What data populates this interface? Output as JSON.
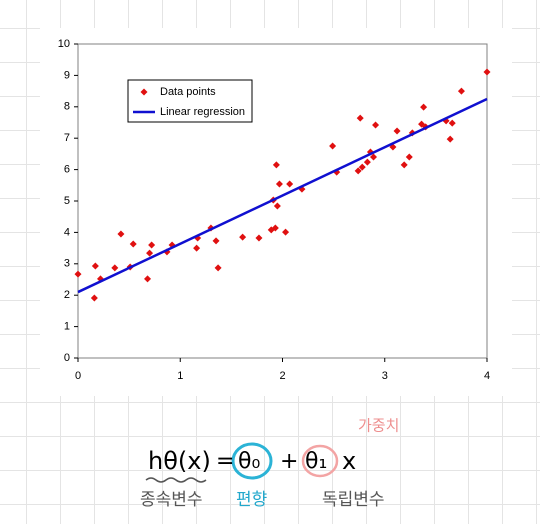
{
  "chart_data": {
    "type": "scatter",
    "xlim": [
      0,
      4
    ],
    "xticks": [
      0,
      1,
      2,
      3,
      4
    ],
    "ylim": [
      0,
      10
    ],
    "yticks": [
      0,
      1,
      2,
      3,
      4,
      5,
      6,
      7,
      8,
      9,
      10
    ],
    "legend": "upper left",
    "series": [
      {
        "name": "Data points",
        "color": "#e01010",
        "marker": "diamond",
        "x": [
          0.0,
          0.16,
          0.17,
          0.22,
          0.36,
          0.42,
          0.51,
          0.54,
          0.68,
          0.7,
          0.72,
          0.87,
          0.92,
          1.16,
          1.17,
          1.3,
          1.35,
          1.37,
          1.61,
          1.77,
          1.89,
          1.91,
          1.93,
          1.94,
          1.95,
          1.97,
          2.03,
          2.07,
          2.19,
          2.49,
          2.53,
          2.74,
          2.76,
          2.78,
          2.83,
          2.86,
          2.89,
          2.91,
          3.08,
          3.12,
          3.19,
          3.24,
          3.27,
          3.36,
          3.38,
          3.4,
          3.6,
          3.64,
          3.66,
          3.75,
          4.0
        ],
        "values": [
          2.67,
          1.91,
          2.93,
          2.52,
          2.87,
          3.95,
          2.9,
          3.63,
          2.52,
          3.34,
          3.6,
          3.38,
          3.6,
          3.5,
          3.82,
          4.14,
          3.73,
          2.87,
          3.85,
          3.82,
          4.08,
          5.03,
          4.14,
          6.15,
          4.84,
          5.54,
          4.01,
          5.54,
          5.38,
          6.75,
          5.92,
          5.96,
          7.64,
          6.08,
          6.24,
          6.56,
          6.4,
          7.42,
          6.72,
          7.23,
          6.15,
          6.4,
          7.17,
          7.45,
          7.99,
          7.36,
          7.55,
          6.97,
          7.48,
          8.5,
          9.11
        ]
      },
      {
        "name": "Linear regression",
        "color": "#1010d0",
        "marker": "line",
        "x": [
          0,
          4
        ],
        "values": [
          2.1,
          8.25
        ]
      }
    ]
  },
  "annotations": {
    "formula": [
      "hθ(x)",
      "=",
      "θ₀",
      "+",
      "θ₁",
      "x"
    ],
    "weight_label": "가중치",
    "dependent_label": "종속변수",
    "bias_label": "편향",
    "independent_label": "독립변수"
  }
}
